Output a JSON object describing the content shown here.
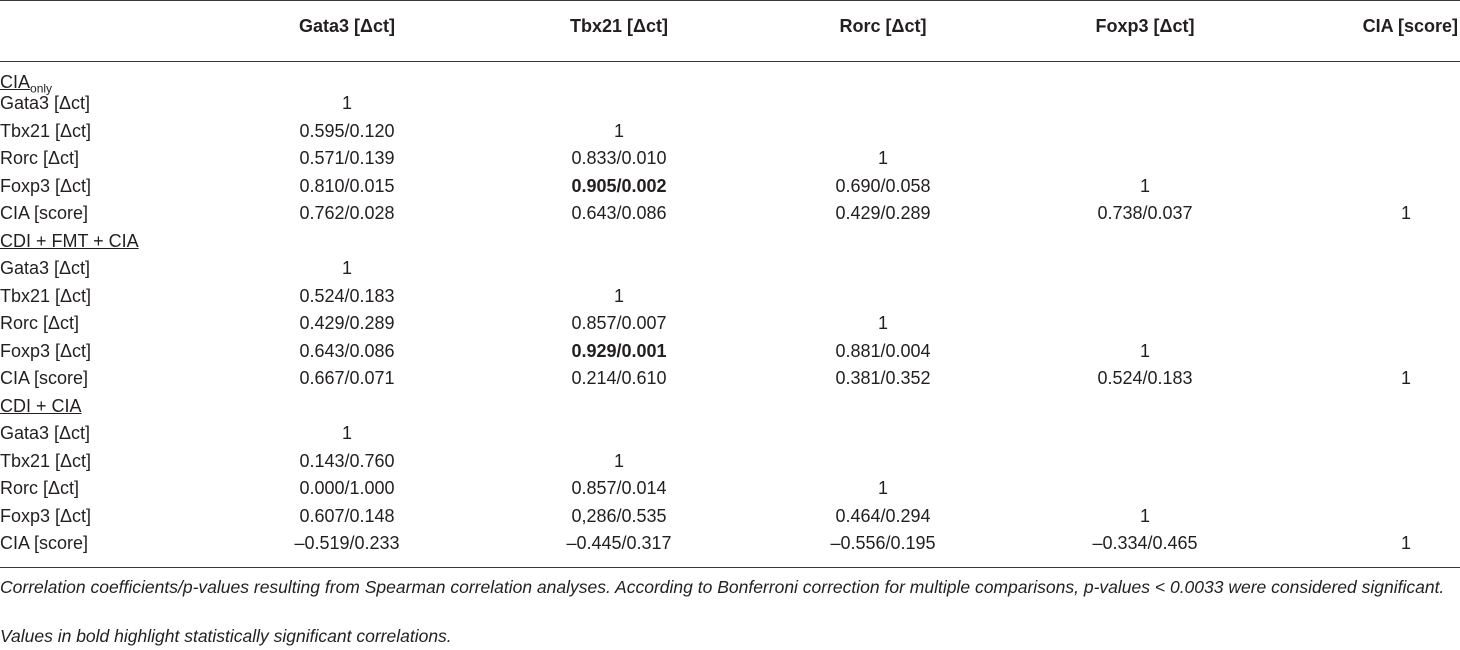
{
  "headers": [
    "Gata3 [Δct]",
    "Tbx21 [Δct]",
    "Rorc [Δct]",
    "Foxp3 [Δct]",
    "CIA [score]"
  ],
  "groups": [
    {
      "label_main": "CIA",
      "label_sub": "only",
      "rows": [
        {
          "label": "Gata3 [Δct]",
          "cells": [
            "1",
            "",
            "",
            "",
            ""
          ]
        },
        {
          "label": "Tbx21 [Δct]",
          "cells": [
            "0.595/0.120",
            "1",
            "",
            "",
            ""
          ]
        },
        {
          "label": "Rorc [Δct]",
          "cells": [
            "0.571/0.139",
            "0.833/0.010",
            "1",
            "",
            ""
          ]
        },
        {
          "label": "Foxp3 [Δct]",
          "cells": [
            "0.810/0.015",
            "0.905/0.002",
            "0.690/0.058",
            "1",
            ""
          ]
        },
        {
          "label": "CIA [score]",
          "cells": [
            "0.762/0.028",
            "0.643/0.086",
            "0.429/0.289",
            "0.738/0.037",
            "1"
          ]
        }
      ]
    },
    {
      "label_main": "CDI + FMT + CIA",
      "label_sub": "",
      "rows": [
        {
          "label": "Gata3 [Δct]",
          "cells": [
            "1",
            "",
            "",
            "",
            ""
          ]
        },
        {
          "label": "Tbx21 [Δct]",
          "cells": [
            "0.524/0.183",
            "1",
            "",
            "",
            ""
          ]
        },
        {
          "label": "Rorc [Δct]",
          "cells": [
            "0.429/0.289",
            "0.857/0.007",
            "1",
            "",
            ""
          ]
        },
        {
          "label": "Foxp3 [Δct]",
          "cells": [
            "0.643/0.086",
            "0.929/0.001",
            "0.881/0.004",
            "1",
            ""
          ]
        },
        {
          "label": "CIA [score]",
          "cells": [
            "0.667/0.071",
            "0.214/0.610",
            "0.381/0.352",
            "0.524/0.183",
            "1"
          ]
        }
      ]
    },
    {
      "label_main": "CDI + CIA",
      "label_sub": "",
      "rows": [
        {
          "label": "Gata3 [Δct]",
          "cells": [
            "1",
            "",
            "",
            "",
            ""
          ]
        },
        {
          "label": "Tbx21 [Δct]",
          "cells": [
            "0.143/0.760",
            "1",
            "",
            "",
            ""
          ]
        },
        {
          "label": "Rorc [Δct]",
          "cells": [
            "0.000/1.000",
            "0.857/0.014",
            "1",
            "",
            ""
          ]
        },
        {
          "label": "Foxp3 [Δct]",
          "cells": [
            "0.607/0.148",
            "0,286/0.535",
            "0.464/0.294",
            "1",
            ""
          ]
        },
        {
          "label": "CIA [score]",
          "cells": [
            "–0.519/0.233",
            "–0.445/0.317",
            "–0.556/0.195",
            "–0.334/0.465",
            "1"
          ]
        }
      ]
    }
  ],
  "footnotes": {
    "note1": "Correlation coefficients/p-values resulting from Spearman correlation analyses. According to Bonferroni correction for multiple comparisons, p-values < 0.0033 were considered significant.",
    "note2": "Values in bold highlight statistically significant correlations."
  }
}
